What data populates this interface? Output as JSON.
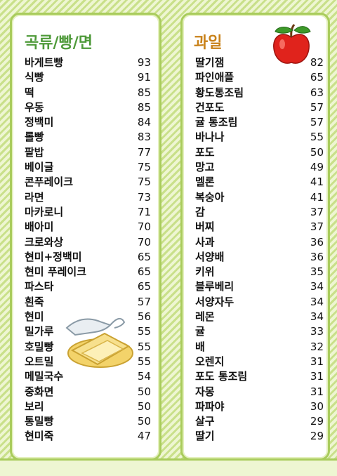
{
  "grains": {
    "title": "곡류/빵/면",
    "items": [
      {
        "name": "바게트빵",
        "value": "93"
      },
      {
        "name": "식빵",
        "value": "91"
      },
      {
        "name": "떡",
        "value": "85"
      },
      {
        "name": "우동",
        "value": "85"
      },
      {
        "name": "정백미",
        "value": "84"
      },
      {
        "name": "롤빵",
        "value": "83"
      },
      {
        "name": "팥밥",
        "value": "77"
      },
      {
        "name": "베이글",
        "value": "75"
      },
      {
        "name": "콘푸레이크",
        "value": "75"
      },
      {
        "name": "라면",
        "value": "73"
      },
      {
        "name": "마카로니",
        "value": "71"
      },
      {
        "name": "배아미",
        "value": "70"
      },
      {
        "name": "크로와상",
        "value": "70"
      },
      {
        "name": "현미+정백미",
        "value": "65"
      },
      {
        "name": "현미 푸레이크",
        "value": "65"
      },
      {
        "name": "파스타",
        "value": "65"
      },
      {
        "name": "흰죽",
        "value": "57"
      },
      {
        "name": "현미",
        "value": "56"
      },
      {
        "name": "밀가루",
        "value": "55"
      },
      {
        "name": "호밀빵",
        "value": "55"
      },
      {
        "name": "오트밀",
        "value": "55"
      },
      {
        "name": "메밀국수",
        "value": "54"
      },
      {
        "name": "중화면",
        "value": "50"
      },
      {
        "name": "보리",
        "value": "50"
      },
      {
        "name": "통밀빵",
        "value": "50"
      },
      {
        "name": "현미죽",
        "value": "47"
      }
    ]
  },
  "fruits": {
    "title": "과일",
    "items": [
      {
        "name": "딸기잼",
        "value": "82"
      },
      {
        "name": "파인애플",
        "value": "65"
      },
      {
        "name": "황도통조림",
        "value": "63"
      },
      {
        "name": "건포도",
        "value": "57"
      },
      {
        "name": "귤 통조림",
        "value": "57"
      },
      {
        "name": "바나나",
        "value": "55"
      },
      {
        "name": "포도",
        "value": "50"
      },
      {
        "name": "망고",
        "value": "49"
      },
      {
        "name": "멜론",
        "value": "41"
      },
      {
        "name": "복숭아",
        "value": "41"
      },
      {
        "name": "감",
        "value": "37"
      },
      {
        "name": "버찌",
        "value": "37"
      },
      {
        "name": "사과",
        "value": "36"
      },
      {
        "name": "서양배",
        "value": "36"
      },
      {
        "name": "키위",
        "value": "35"
      },
      {
        "name": "블루베리",
        "value": "34"
      },
      {
        "name": "서양자두",
        "value": "34"
      },
      {
        "name": "레몬",
        "value": "34"
      },
      {
        "name": "귤",
        "value": "33"
      },
      {
        "name": "배",
        "value": "32"
      },
      {
        "name": "오렌지",
        "value": "31"
      },
      {
        "name": "포도 통조림",
        "value": "31"
      },
      {
        "name": "자몽",
        "value": "31"
      },
      {
        "name": "파파야",
        "value": "30"
      },
      {
        "name": "살구",
        "value": "29"
      },
      {
        "name": "딸기",
        "value": "29"
      }
    ]
  },
  "icons": {
    "fruit_illustration": "apple-icon",
    "grain_illustration": "butter-toast-icon"
  },
  "colors": {
    "border": "#a9cc5c",
    "grains_title": "#4f9a3a",
    "fruits_title": "#c9821a",
    "apple": "#e0231c"
  }
}
